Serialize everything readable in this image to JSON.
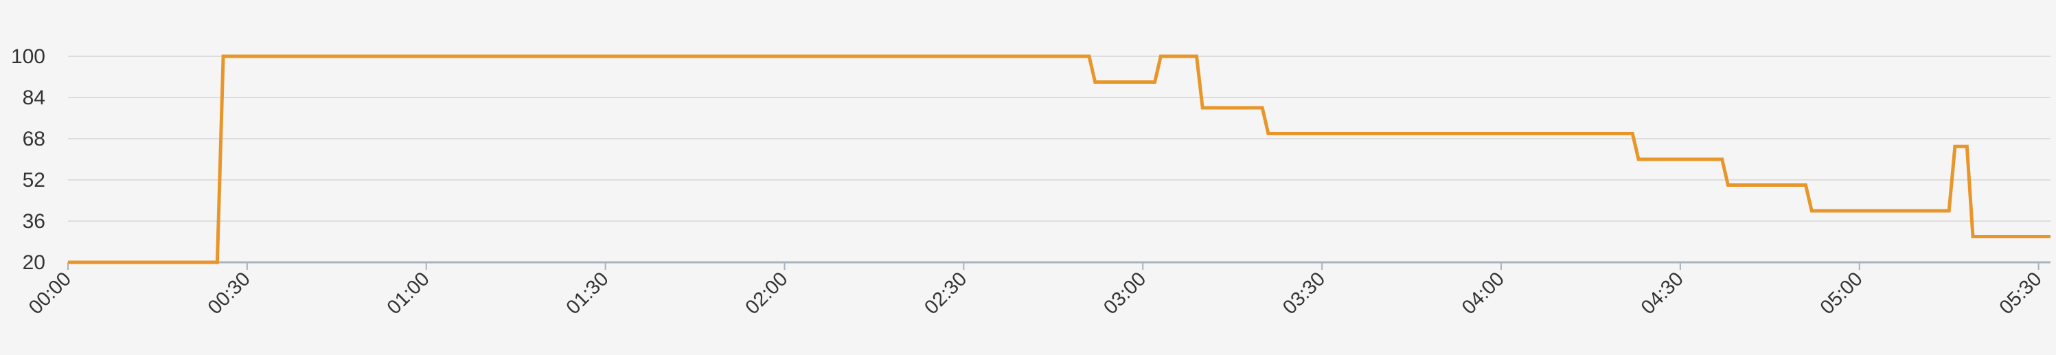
{
  "chart_data": {
    "type": "line",
    "title": "",
    "xlabel": "",
    "ylabel": "",
    "x_ticks": [
      "00:00",
      "00:30",
      "01:00",
      "01:30",
      "02:00",
      "02:30",
      "03:00",
      "03:30",
      "04:00",
      "04:30",
      "05:00",
      "05:30"
    ],
    "y_ticks": [
      20,
      36,
      52,
      68,
      84,
      100
    ],
    "xlim_minutes": [
      0,
      332
    ],
    "ylim": [
      20,
      100
    ],
    "grid": true,
    "legend": "none",
    "colors": {
      "line": "#e8962a",
      "grid": "#dddddd",
      "axis": "#a8b4c0",
      "background": "#f5f5f5"
    },
    "series": [
      {
        "x": [
          "00:00",
          "00:25",
          "00:26",
          "02:51",
          "02:52",
          "03:02",
          "03:03",
          "03:09",
          "03:10",
          "03:20",
          "03:21",
          "04:22",
          "04:23",
          "04:37",
          "04:38",
          "04:51",
          "04:52",
          "05:15",
          "05:16",
          "05:18",
          "05:19",
          "05:32"
        ],
        "values": [
          20,
          20,
          100,
          100,
          90,
          90,
          100,
          100,
          80,
          80,
          70,
          70,
          60,
          60,
          50,
          50,
          40,
          40,
          65,
          65,
          30,
          30
        ]
      }
    ]
  }
}
